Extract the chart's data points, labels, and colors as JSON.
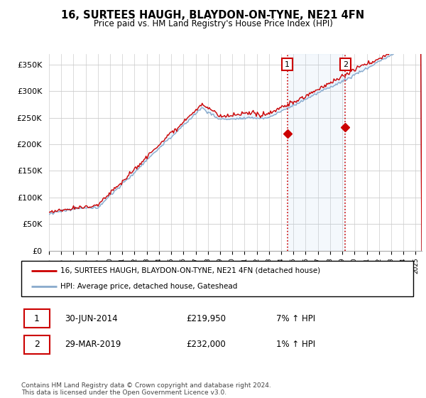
{
  "title": "16, SURTEES HAUGH, BLAYDON-ON-TYNE, NE21 4FN",
  "subtitle": "Price paid vs. HM Land Registry's House Price Index (HPI)",
  "ylabel_ticks": [
    "£0",
    "£50K",
    "£100K",
    "£150K",
    "£200K",
    "£250K",
    "£300K",
    "£350K"
  ],
  "ytick_values": [
    0,
    50000,
    100000,
    150000,
    200000,
    250000,
    300000,
    350000
  ],
  "ylim": [
    0,
    370000
  ],
  "xlim_start": 1995.0,
  "xlim_end": 2025.5,
  "line1_color": "#cc0000",
  "line2_color": "#88aacc",
  "line2_fill_color": "#ddeeff",
  "marker1_date": 2014.5,
  "marker1_value": 219950,
  "marker2_date": 2019.25,
  "marker2_value": 232000,
  "vline_color": "#cc0000",
  "legend1_label": "16, SURTEES HAUGH, BLAYDON-ON-TYNE, NE21 4FN (detached house)",
  "legend2_label": "HPI: Average price, detached house, Gateshead",
  "table_rows": [
    {
      "num": "1",
      "date": "30-JUN-2014",
      "price": "£219,950",
      "hpi": "7% ↑ HPI"
    },
    {
      "num": "2",
      "date": "29-MAR-2019",
      "price": "£232,000",
      "hpi": "1% ↑ HPI"
    }
  ],
  "footer": "Contains HM Land Registry data © Crown copyright and database right 2024.\nThis data is licensed under the Open Government Licence v3.0.",
  "background_color": "#ffffff",
  "grid_color": "#cccccc"
}
